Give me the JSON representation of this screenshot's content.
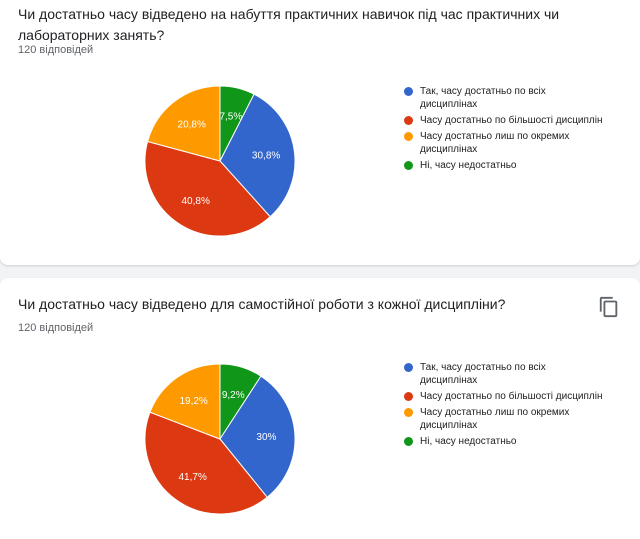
{
  "questions": [
    {
      "title": "Чи достатньо часу відведено на набуття практичних навичок під час практичних чи лабораторних занять?",
      "responses": "120 відповідей"
    },
    {
      "title": "Чи достатньо часу відведено для самостійної роботи з кожної дисципліни?",
      "responses": "120 відповідей"
    }
  ],
  "legend": [
    {
      "label": "Так, часу достатньо по всіх дисциплінах",
      "color": "#3366cc"
    },
    {
      "label": "Часу достатньо по більшості дисциплін",
      "color": "#dc3912"
    },
    {
      "label": "Часу достатньо лиш по окремих дисциплінах",
      "color": "#ff9900"
    },
    {
      "label": "Ні, часу недостатньо",
      "color": "#109618"
    }
  ],
  "icons": {
    "copy": "copy-icon"
  },
  "chart_data": [
    {
      "type": "pie",
      "categories": [
        "Так, часу достатньо по всіх дисциплінах",
        "Часу достатньо по більшості дисциплін",
        "Часу достатньо лиш по окремих дисциплінах",
        "Ні, часу недостатньо"
      ],
      "values": [
        30.8,
        40.8,
        20.8,
        7.5
      ],
      "labels": [
        "30,8%",
        "40,8%",
        "20,8%",
        "7,5%"
      ],
      "colors": [
        "#3366cc",
        "#dc3912",
        "#ff9900",
        "#109618"
      ],
      "legend": "right"
    },
    {
      "type": "pie",
      "categories": [
        "Так, часу достатньо по всіх дисциплінах",
        "Часу достатньо по більшості дисциплін",
        "Часу достатньо лиш по окремих дисциплінах",
        "Ні, часу недостатньо"
      ],
      "values": [
        30,
        41.7,
        19.2,
        9.2
      ],
      "labels": [
        "30%",
        "41,7%",
        "19,2%",
        "9,2%"
      ],
      "colors": [
        "#3366cc",
        "#dc3912",
        "#ff9900",
        "#109618"
      ],
      "legend": "right"
    }
  ]
}
